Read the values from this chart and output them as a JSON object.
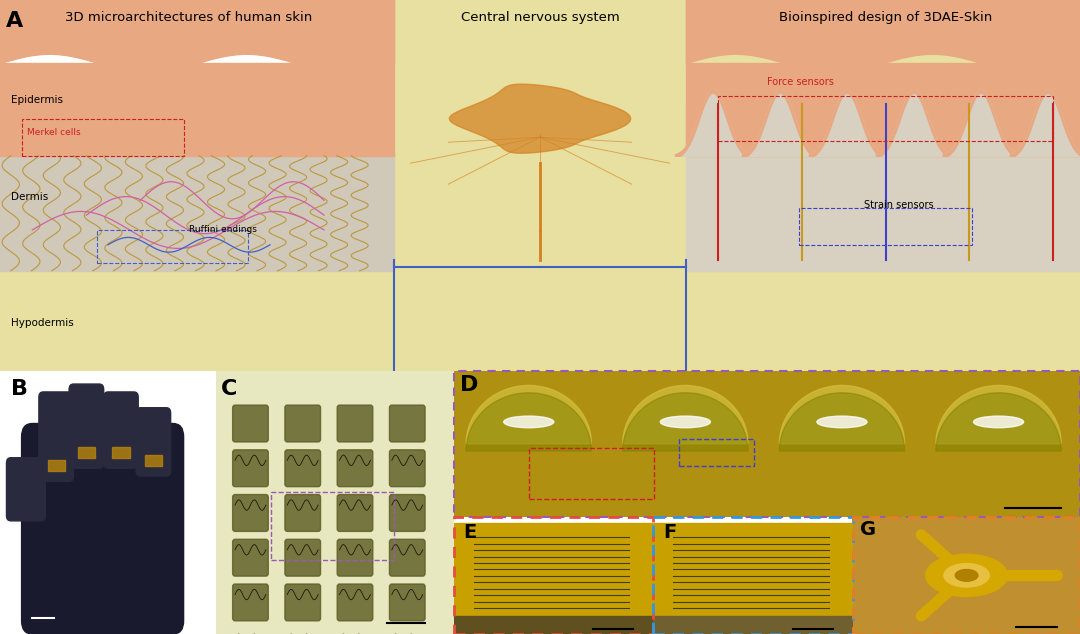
{
  "fig_width": 10.8,
  "fig_height": 6.34,
  "bg_color": "#ffffff",
  "panel_A": {
    "label": "A",
    "bg_color": "#f5e9c0",
    "title_left": "3D microarchitectures of human skin",
    "title_center": "Central nervous system",
    "title_right": "Bioinspired design of 3DAE-Skin",
    "epidermis_color": "#e8a882",
    "dermis_color": "#d4c4a0",
    "hypodermis_color": "#ede9b0",
    "skin_line_color": "#e8a882",
    "fiber_color": "#b8902a",
    "nerve_color_pink": "#c060a0",
    "nerve_color_blue": "#4060c0",
    "label_epidermis": "Epidermis",
    "label_merkel": "Merkel cells",
    "label_dermis": "Dermis",
    "label_ruffini": "Ruffini endings",
    "label_hypodermis": "Hypodermis",
    "label_force": "Force sensors",
    "label_strain": "Strain sensors"
  },
  "panel_B": {
    "label": "B",
    "bg_color": "#ffffff"
  },
  "panel_C": {
    "label": "C",
    "bg_color": "#f0f0d0"
  },
  "panel_D": {
    "label": "D",
    "border_color": "#9b59b6",
    "dashed": true
  },
  "panel_E": {
    "label": "E",
    "border_color": "#e74c3c",
    "bg_color": "#c8a000",
    "dashed": true
  },
  "panel_F": {
    "label": "F",
    "border_color": "#3498db",
    "bg_color": "#c8a000",
    "dashed": true
  },
  "panel_G": {
    "label": "G",
    "border_color": "#e67e22",
    "bg_color": "#c8a000",
    "dashed": true
  },
  "colors": {
    "orange_gold": "#c8a000",
    "dark_gold": "#a07800",
    "skin_peach": "#e8a882",
    "skin_light": "#f0c8a0",
    "dermis_gray": "#c8c0b0",
    "hypodermis_yellow": "#e8e0a0",
    "fiber_brown": "#b8902a",
    "nerve_pink": "#d060a8",
    "nerve_blue": "#4060c8",
    "brain_orange": "#d48020",
    "sensor_red": "#cc2020",
    "bg_light": "#f8f8e8"
  },
  "label_fontsize": 16,
  "title_fontsize": 9.5
}
